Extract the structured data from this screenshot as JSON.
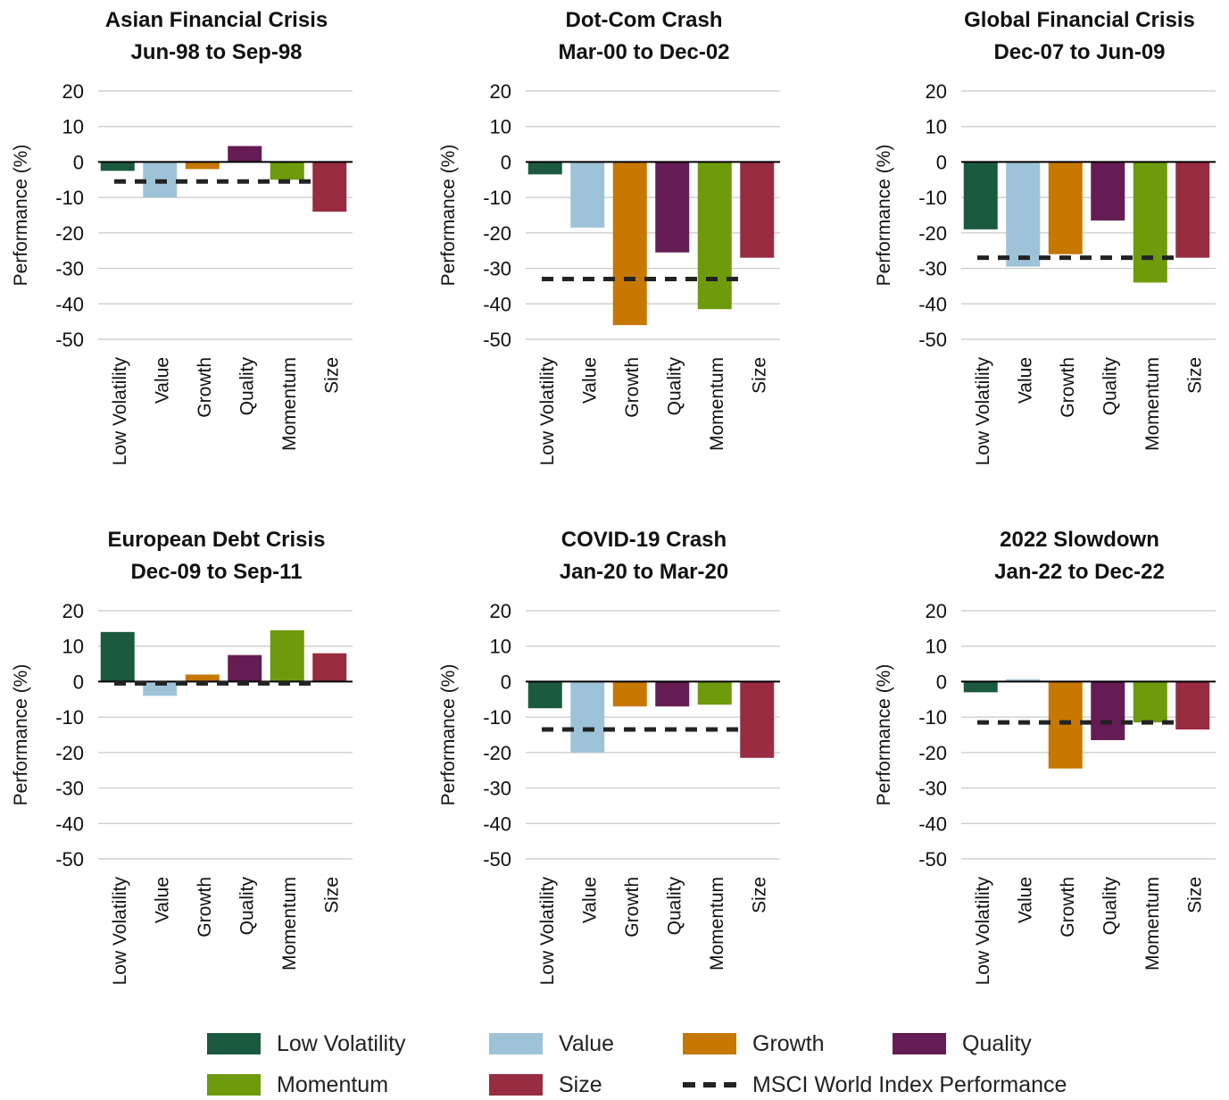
{
  "colors": {
    "Low Volatility": "#1c5a3f",
    "Value": "#9ec3d8",
    "Growth": "#c77800",
    "Quality": "#651c55",
    "Momentum": "#6e9a0c",
    "Size": "#982c40",
    "index_line": "#222222",
    "grid": "#c8c8c8",
    "axis": "#000000"
  },
  "chart_data": [
    {
      "type": "bar",
      "title": "Asian Financial Crisis",
      "subtitle": "Jun-98 to Sep-98",
      "ylabel": "Performance (%)",
      "ylim": [
        -50,
        20
      ],
      "yticks": [
        "20",
        "10",
        "0",
        "-10",
        "-20",
        "-30",
        "-40",
        "-50"
      ],
      "categories": [
        "Low Volatility",
        "Value",
        "Growth",
        "Quality",
        "Momentum",
        "Size"
      ],
      "values": [
        -2.5,
        -10,
        -2,
        4.5,
        -5,
        -14
      ],
      "index_performance": -5.5
    },
    {
      "type": "bar",
      "title": "Dot-Com Crash",
      "subtitle": "Mar-00 to Dec-02",
      "ylabel": "Performance (%)",
      "ylim": [
        -50,
        20
      ],
      "yticks": [
        "20",
        "10",
        "0",
        "-10",
        "-20",
        "-30",
        "-40",
        "-50"
      ],
      "categories": [
        "Low Volatility",
        "Value",
        "Growth",
        "Quality",
        "Momentum",
        "Size"
      ],
      "values": [
        -3.5,
        -18.5,
        -46,
        -25.5,
        -41.5,
        -27
      ],
      "index_performance": -33
    },
    {
      "type": "bar",
      "title": "Global Financial Crisis",
      "subtitle": "Dec-07 to Jun-09",
      "ylabel": "Performance (%)",
      "ylim": [
        -50,
        20
      ],
      "yticks": [
        "20",
        "10",
        "0",
        "-10",
        "-20",
        "-30",
        "-40",
        "-50"
      ],
      "categories": [
        "Low Volatility",
        "Value",
        "Growth",
        "Quality",
        "Momentum",
        "Size"
      ],
      "values": [
        -19,
        -29.5,
        -26,
        -16.5,
        -34,
        -27
      ],
      "index_performance": -27
    },
    {
      "type": "bar",
      "title": "European Debt Crisis",
      "subtitle": "Dec-09 to Sep-11",
      "ylabel": "Performance (%)",
      "ylim": [
        -50,
        20
      ],
      "yticks": [
        "20",
        "10",
        "0",
        "-10",
        "-20",
        "-30",
        "-40",
        "-50"
      ],
      "categories": [
        "Low Volatility",
        "Value",
        "Growth",
        "Quality",
        "Momentum",
        "Size"
      ],
      "values": [
        14,
        -4,
        2,
        7.5,
        14.5,
        8
      ],
      "index_performance": -0.5
    },
    {
      "type": "bar",
      "title": "COVID-19 Crash",
      "subtitle": "Jan-20 to Mar-20",
      "ylabel": "Performance (%)",
      "ylim": [
        -50,
        20
      ],
      "yticks": [
        "20",
        "10",
        "0",
        "-10",
        "-20",
        "-30",
        "-40",
        "-50"
      ],
      "categories": [
        "Low Volatility",
        "Value",
        "Growth",
        "Quality",
        "Momentum",
        "Size"
      ],
      "values": [
        -7.5,
        -20,
        -7,
        -7,
        -6.5,
        -21.5
      ],
      "index_performance": -13.5
    },
    {
      "type": "bar",
      "title": "2022 Slowdown",
      "subtitle": "Jan-22 to Dec-22",
      "ylabel": "Performance (%)",
      "ylim": [
        -50,
        20
      ],
      "yticks": [
        "20",
        "10",
        "0",
        "-10",
        "-20",
        "-30",
        "-40",
        "-50"
      ],
      "categories": [
        "Low Volatility",
        "Value",
        "Growth",
        "Quality",
        "Momentum",
        "Size"
      ],
      "values": [
        -3,
        0.7,
        -24.5,
        -16.5,
        -11.5,
        -13.5
      ],
      "index_performance": -11.5
    }
  ],
  "legend": {
    "items": [
      {
        "label": "Low Volatility",
        "kind": "swatch"
      },
      {
        "label": "Value",
        "kind": "swatch"
      },
      {
        "label": "Growth",
        "kind": "swatch"
      },
      {
        "label": "Quality",
        "kind": "swatch"
      },
      {
        "label": "Momentum",
        "kind": "swatch"
      },
      {
        "label": "Size",
        "kind": "swatch"
      },
      {
        "label": "MSCI World Index Performance",
        "kind": "dash"
      }
    ]
  }
}
